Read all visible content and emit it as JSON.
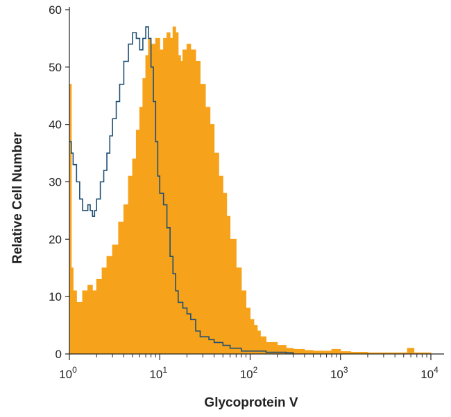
{
  "chart_data": {
    "type": "area",
    "xlabel": "Glycoprotein V",
    "ylabel": "Relative Cell Number",
    "xscale": "log",
    "xlim": [
      1,
      10000
    ],
    "ylim": [
      0,
      60
    ],
    "x_ticks": [
      {
        "value": 1,
        "base": "10",
        "exp": "0"
      },
      {
        "value": 10,
        "base": "10",
        "exp": "1"
      },
      {
        "value": 100,
        "base": "10",
        "exp": "2"
      },
      {
        "value": 1000,
        "base": "10",
        "exp": "3"
      },
      {
        "value": 10000,
        "base": "10",
        "exp": "4"
      }
    ],
    "y_ticks": [
      {
        "value": 0,
        "label": "0"
      },
      {
        "value": 10,
        "label": "10"
      },
      {
        "value": 20,
        "label": "20"
      },
      {
        "value": 30,
        "label": "30"
      },
      {
        "value": 40,
        "label": "40"
      },
      {
        "value": 50,
        "label": "50"
      },
      {
        "value": 60,
        "label": "60"
      }
    ],
    "grid": false,
    "legend": "none",
    "series": [
      {
        "style": "filled-histogram",
        "color": "#F7A21B",
        "x": [
          1,
          1.05,
          1.1,
          1.2,
          1.4,
          1.6,
          1.8,
          2,
          2.3,
          2.6,
          3,
          3.5,
          4,
          4.5,
          5,
          5.5,
          6,
          6.5,
          7,
          7.5,
          8,
          9,
          10,
          11,
          12,
          13,
          14,
          15,
          16,
          17,
          18,
          20,
          22,
          25,
          28,
          32,
          36,
          40,
          45,
          50,
          55,
          60,
          70,
          80,
          90,
          100,
          110,
          120,
          130,
          150,
          170,
          200,
          250,
          300,
          400,
          500,
          700,
          800,
          1000,
          1300,
          2000,
          3000,
          5000,
          5500,
          6000,
          6500,
          10000
        ],
        "values": [
          47,
          15,
          11,
          9,
          11,
          12,
          11,
          13,
          15,
          17,
          19,
          23,
          26,
          31,
          34,
          39,
          43,
          48,
          52,
          55,
          54,
          55,
          53,
          55,
          56,
          55,
          57,
          56,
          52,
          51,
          53,
          54,
          53,
          51,
          47,
          43,
          40,
          35,
          31,
          28,
          24,
          20,
          15,
          11,
          8,
          6,
          5,
          4,
          3,
          2,
          2,
          1.5,
          1,
          0.8,
          0.6,
          0.5,
          0.5,
          0.8,
          0.4,
          0.3,
          0.2,
          0.2,
          0.2,
          1,
          1,
          0.2,
          0
        ]
      },
      {
        "style": "outline-histogram",
        "color": "#1E4F73",
        "x": [
          1,
          1.05,
          1.1,
          1.2,
          1.3,
          1.4,
          1.5,
          1.6,
          1.7,
          1.8,
          1.9,
          2,
          2.2,
          2.4,
          2.6,
          2.8,
          3,
          3.3,
          3.6,
          4,
          4.5,
          5,
          5.5,
          6,
          6.5,
          7,
          7.5,
          8,
          8.5,
          9,
          9.5,
          10,
          11,
          12,
          13,
          14,
          15,
          16,
          18,
          20,
          22,
          25,
          28,
          30,
          35,
          40,
          50,
          60,
          70,
          80,
          100,
          120,
          150,
          200,
          250,
          300
        ],
        "values": [
          37,
          35,
          33,
          30,
          27,
          25,
          25,
          26,
          25,
          24,
          25,
          27,
          30,
          32,
          35,
          38,
          41,
          44,
          47,
          51,
          54,
          56,
          55,
          53,
          55,
          57,
          55,
          50,
          44,
          37,
          31,
          28,
          26,
          22,
          17,
          14,
          11,
          9,
          8,
          7,
          6,
          4,
          3,
          3,
          2.5,
          2,
          1.5,
          1,
          1,
          0.5,
          0.5,
          0.5,
          0.3,
          0.3,
          0.2,
          0
        ]
      }
    ]
  }
}
